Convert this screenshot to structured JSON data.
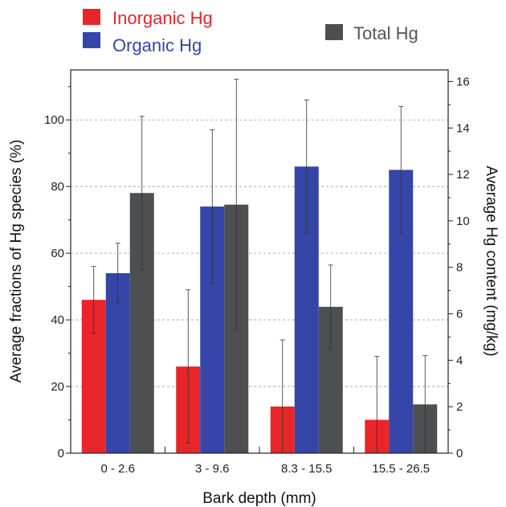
{
  "colors": {
    "inorganic": "#e8262a",
    "organic": "#3545a8",
    "total": "#4d4f51",
    "legend_inorganic_text": "#e8262a",
    "legend_organic_text": "#3545a8",
    "legend_total_text": "#555555",
    "grid": "#999999"
  },
  "chart_data": {
    "type": "bar",
    "categories": [
      "0 - 2.6",
      "3 - 9.6",
      "8.3 - 15.5",
      "15.5 - 26.5"
    ],
    "xlabel": "Bark depth (mm)",
    "ylabel": "Average fractions of Hg species (%)",
    "y2label": "Average Hg content (mg/kg)",
    "ylim": [
      0,
      115
    ],
    "y2lim": [
      0,
      16.5
    ],
    "yticks": [
      0,
      20,
      40,
      60,
      80,
      100
    ],
    "y2ticks": [
      0,
      2,
      4,
      6,
      8,
      10,
      12,
      14,
      16
    ],
    "grid": "dashed horizontal lines",
    "legend_position": "top",
    "series": [
      {
        "name": "Inorganic Hg",
        "axis": "left",
        "values": [
          46,
          26,
          14,
          10
        ],
        "error": [
          10,
          23,
          20,
          19
        ]
      },
      {
        "name": "Organic Hg",
        "axis": "left",
        "values": [
          54,
          74,
          86,
          85
        ],
        "error": [
          9,
          23,
          20,
          19
        ]
      },
      {
        "name": "Total Hg",
        "axis": "right",
        "values": [
          11.2,
          10.7,
          6.3,
          2.1
        ],
        "error": [
          3.3,
          5.4,
          1.8,
          2.1
        ]
      }
    ]
  }
}
